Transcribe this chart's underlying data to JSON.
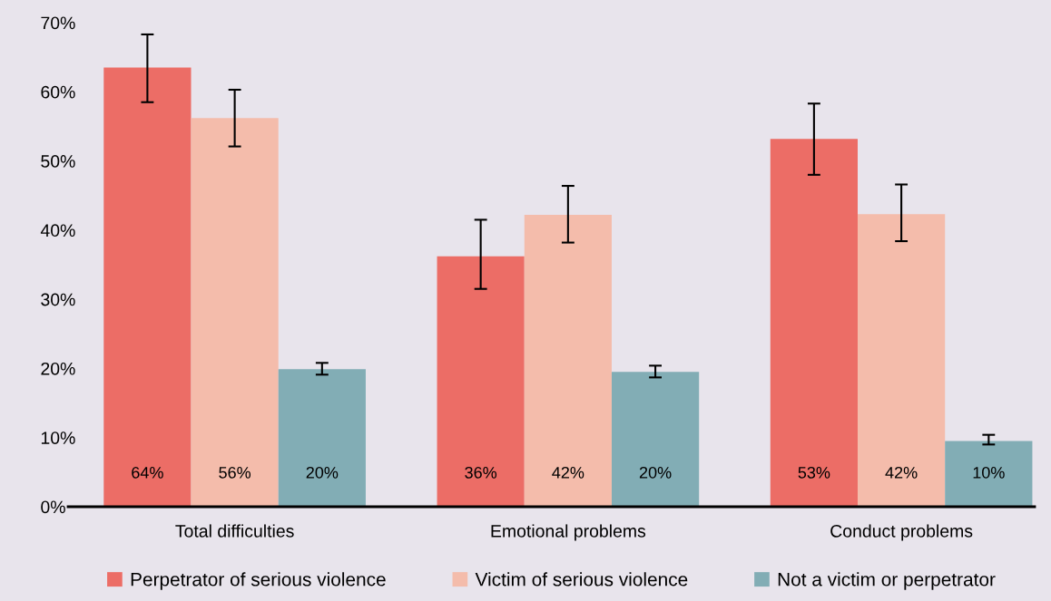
{
  "chart_data": {
    "type": "bar",
    "categories": [
      "Total difficulties",
      "Emotional problems",
      "Conduct problems"
    ],
    "series": [
      {
        "name": "Perpetrator of serious violence",
        "color": "#ec6d66",
        "values": [
          63.5,
          36.2,
          53.2
        ],
        "value_labels": [
          "64%",
          "36%",
          "53%"
        ],
        "errors": [
          [
            58.5,
            68.3
          ],
          [
            31.5,
            41.5
          ],
          [
            48.0,
            58.3
          ]
        ]
      },
      {
        "name": "Victim of serious violence",
        "color": "#f4bcab",
        "values": [
          56.2,
          42.2,
          42.3
        ],
        "value_labels": [
          "56%",
          "42%",
          "42%"
        ],
        "errors": [
          [
            52.1,
            60.3
          ],
          [
            38.2,
            46.4
          ],
          [
            38.4,
            46.6
          ]
        ]
      },
      {
        "name": "Not a victim or perpetrator",
        "color": "#82adb5",
        "values": [
          19.9,
          19.5,
          9.5
        ],
        "value_labels": [
          "20%",
          "20%",
          "10%"
        ],
        "errors": [
          [
            19.1,
            20.8
          ],
          [
            18.7,
            20.4
          ],
          [
            9.0,
            10.4
          ]
        ]
      }
    ],
    "ylim": [
      0,
      70
    ],
    "yticks": [
      {
        "value": 0,
        "label": "0%"
      },
      {
        "value": 10,
        "label": "10%"
      },
      {
        "value": 20,
        "label": "20%"
      },
      {
        "value": 30,
        "label": "30%"
      },
      {
        "value": 40,
        "label": "40%"
      },
      {
        "value": 50,
        "label": "50%"
      },
      {
        "value": 60,
        "label": "60%"
      },
      {
        "value": 70,
        "label": "70%"
      }
    ],
    "grid": false,
    "legend": "bottom"
  }
}
